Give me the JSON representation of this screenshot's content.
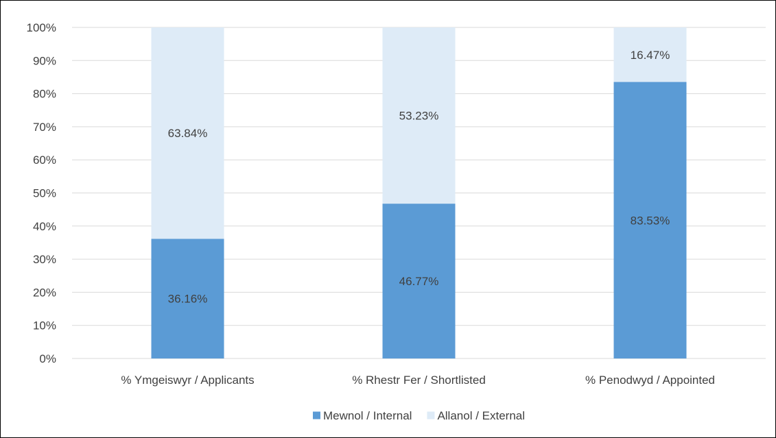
{
  "chart_data": {
    "type": "bar",
    "stacked": true,
    "categories": [
      "% Ymgeiswyr / Applicants",
      "% Rhestr Fer / Shortlisted",
      "% Penodwyd / Appointed"
    ],
    "series": [
      {
        "name": "Mewnol / Internal",
        "values": [
          36.16,
          46.77,
          83.53
        ],
        "labels": [
          "36.16%",
          "46.77%",
          "83.53%"
        ],
        "color": "#5B9BD5"
      },
      {
        "name": "Allanol / External",
        "values": [
          63.84,
          53.23,
          16.47
        ],
        "labels": [
          "63.84%",
          "53.23%",
          "16.47%"
        ],
        "color": "#DEEBF7"
      }
    ],
    "ylim": [
      0,
      100
    ],
    "yticks": [
      0,
      10,
      20,
      30,
      40,
      50,
      60,
      70,
      80,
      90,
      100
    ],
    "ytick_labels": [
      "0%",
      "10%",
      "20%",
      "30%",
      "40%",
      "50%",
      "60%",
      "70%",
      "80%",
      "90%",
      "100%"
    ],
    "title": "",
    "xlabel": "",
    "ylabel": "",
    "grid": "horizontal",
    "legend_position": "bottom",
    "colors": {
      "gridline": "#D9D9D9",
      "text": "#404040",
      "border": "#000000"
    }
  }
}
